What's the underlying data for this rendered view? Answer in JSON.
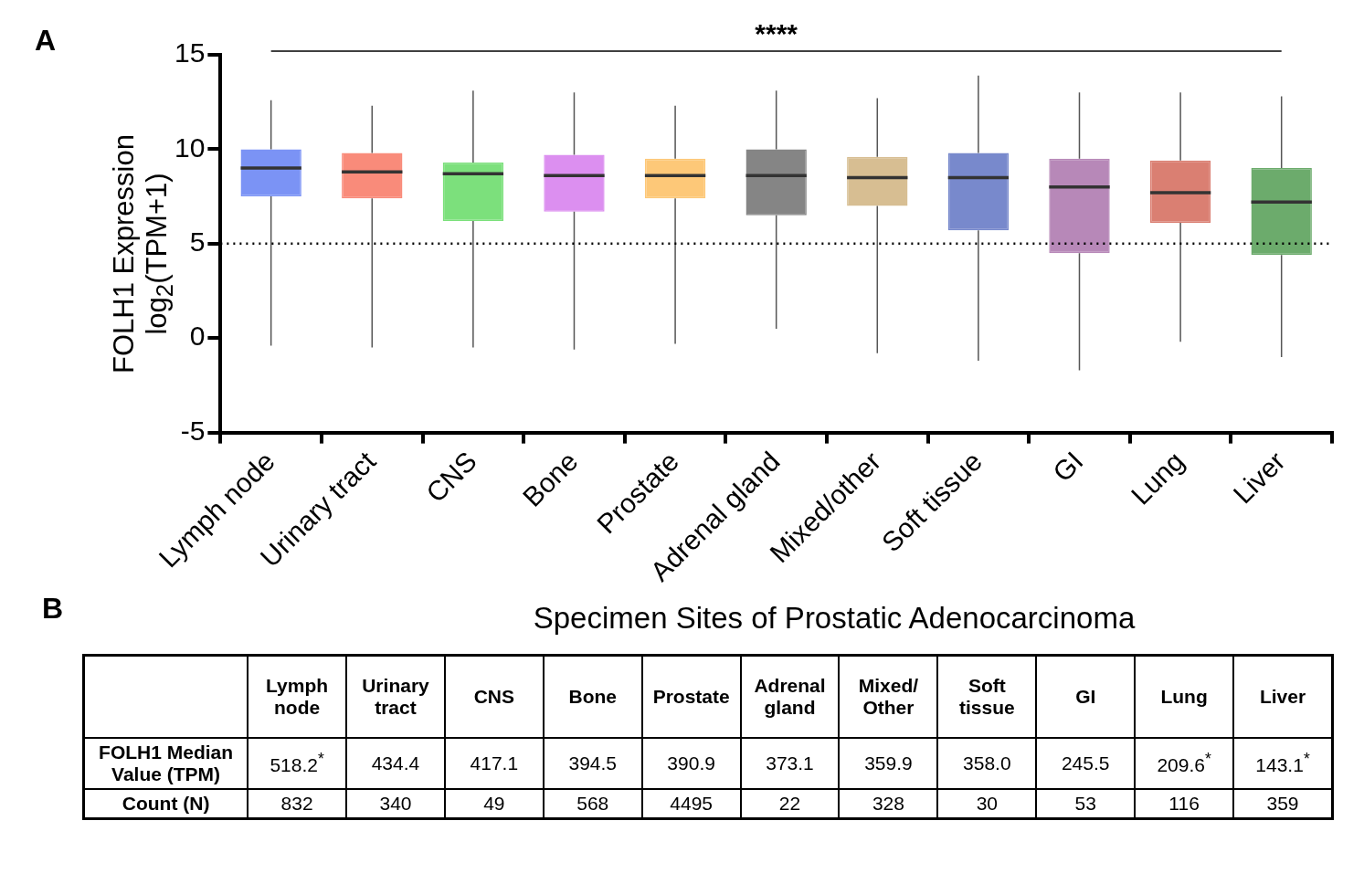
{
  "chart_data": [
    {
      "type": "box",
      "ylabel": "FOLH1 Expression\nlog$_{2}$(TPM+1)",
      "categories": [
        "Lymph node",
        "Urinary tract",
        "CNS",
        "Bone",
        "Prostate",
        "Adrenal gland",
        "Mixed/other",
        "Soft tissue",
        "GI",
        "Lung",
        "Liver"
      ],
      "colors": [
        "#7b93f5",
        "#f98b7a",
        "#7ce07c",
        "#dc8ff0",
        "#fdc878",
        "#858585",
        "#d7be92",
        "#7889cc",
        "#b788b8",
        "#da7f72",
        "#6cab6c"
      ],
      "boxes": [
        {
          "low": -0.4,
          "q1": 7.5,
          "median": 9.0,
          "q3": 10.0,
          "high": 12.6
        },
        {
          "low": -0.5,
          "q1": 7.4,
          "median": 8.8,
          "q3": 9.8,
          "high": 12.3
        },
        {
          "low": -0.5,
          "q1": 6.2,
          "median": 8.7,
          "q3": 9.3,
          "high": 13.1
        },
        {
          "low": -0.6,
          "q1": 6.7,
          "median": 8.6,
          "q3": 9.7,
          "high": 13.0
        },
        {
          "low": -0.3,
          "q1": 7.4,
          "median": 8.6,
          "q3": 9.5,
          "high": 12.3
        },
        {
          "low": 0.5,
          "q1": 6.5,
          "median": 8.6,
          "q3": 10.0,
          "high": 13.1
        },
        {
          "low": -0.8,
          "q1": 7.0,
          "median": 8.5,
          "q3": 9.6,
          "high": 12.7
        },
        {
          "low": -1.2,
          "q1": 5.7,
          "median": 8.5,
          "q3": 9.8,
          "high": 13.9
        },
        {
          "low": -1.7,
          "q1": 4.5,
          "median": 8.0,
          "q3": 9.5,
          "high": 13.0
        },
        {
          "low": -0.2,
          "q1": 6.1,
          "median": 7.7,
          "q3": 9.4,
          "high": 13.0
        },
        {
          "low": -1.0,
          "q1": 4.4,
          "median": 7.2,
          "q3": 9.0,
          "high": 12.8
        }
      ],
      "ylim": [
        -5,
        15
      ],
      "yticks": [
        -5,
        0,
        5,
        10,
        15
      ],
      "grid": false,
      "ref_lines": [
        {
          "axis": "y",
          "value": 5,
          "line_style": "dotted",
          "color": "#000000"
        }
      ],
      "annotations": [
        "A",
        "****"
      ]
    },
    {
      "type": "other",
      "title": "Specimen Sites of Prostatic Adenocarcinoma",
      "categories": [
        "Lymph node",
        "Urinary tract",
        "CNS",
        "Bone",
        "Prostate",
        "Adrenal gland",
        "Mixed/ Other",
        "Soft tissue",
        "GI",
        "Lung",
        "Liver"
      ],
      "y_categories": [
        "FOLH1 Median Value (TPM)",
        "Count (N)"
      ],
      "cell_labels": [
        [
          "518.2$^{*}$",
          "434.4",
          "417.1",
          "394.5",
          "390.9",
          "373.1",
          "359.9",
          "358.0",
          "245.5",
          "209.6$^{*}$",
          "143.1$^{*}$"
        ],
        [
          "832",
          "340",
          "49",
          "568",
          "4495",
          "22",
          "328",
          "30",
          "53",
          "116",
          "359"
        ]
      ],
      "annotations": [
        "B"
      ]
    }
  ]
}
